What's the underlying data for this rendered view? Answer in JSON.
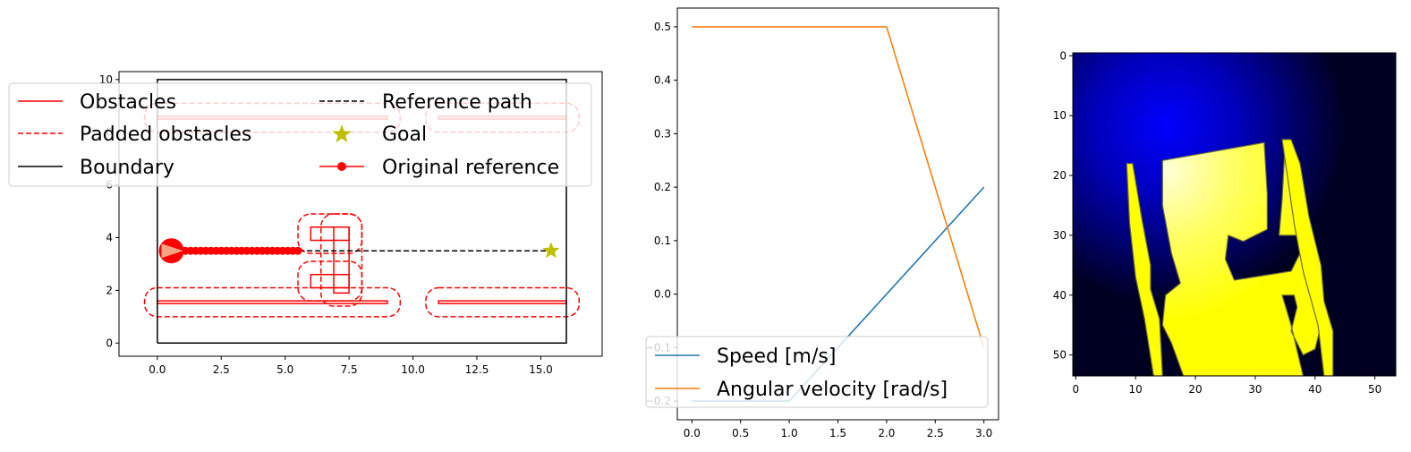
{
  "chart_data": [
    {
      "type": "line",
      "xlim": [
        -1.5,
        17.4
      ],
      "ylim": [
        -0.5,
        10.3
      ],
      "x_ticks": [
        "0.0",
        "2.5",
        "5.0",
        "7.5",
        "10.0",
        "12.5",
        "15.0"
      ],
      "y_ticks": [
        "0",
        "2",
        "4",
        "6",
        "8",
        "10"
      ],
      "grid": false,
      "legend_placement": "upper-left",
      "legend": {
        "obstacles": "Obstacles",
        "padded": "Padded obstacles",
        "boundary": "Boundary",
        "reference": "Reference path",
        "goal": "Goal",
        "original": "Original reference"
      },
      "boundary": [
        [
          0,
          0
        ],
        [
          16,
          0
        ],
        [
          16,
          10
        ],
        [
          0,
          10
        ],
        [
          0,
          0
        ]
      ],
      "obstacles": [
        [
          [
            0,
            1.5
          ],
          [
            9,
            1.5
          ],
          [
            9,
            1.6
          ],
          [
            0,
            1.6
          ]
        ],
        [
          [
            11,
            1.5
          ],
          [
            16,
            1.5
          ],
          [
            16,
            1.6
          ],
          [
            11,
            1.6
          ]
        ],
        [
          [
            0,
            8.5
          ],
          [
            9,
            8.5
          ],
          [
            9,
            8.6
          ],
          [
            0,
            8.6
          ]
        ],
        [
          [
            11,
            8.5
          ],
          [
            16,
            8.5
          ],
          [
            16,
            8.6
          ],
          [
            11,
            8.6
          ]
        ],
        [
          [
            6.0,
            2.1
          ],
          [
            7.5,
            2.1
          ],
          [
            7.5,
            2.6
          ],
          [
            6.0,
            2.6
          ]
        ],
        [
          [
            6.0,
            3.9
          ],
          [
            7.5,
            3.9
          ],
          [
            7.5,
            4.4
          ],
          [
            6.0,
            4.4
          ]
        ],
        [
          [
            6.9,
            1.9
          ],
          [
            7.5,
            1.9
          ],
          [
            7.5,
            4.4
          ],
          [
            6.9,
            4.4
          ]
        ]
      ],
      "padding": 0.5,
      "reference_path": [
        [
          0.5,
          3.5
        ],
        [
          15.4,
          3.5
        ]
      ],
      "goal": [
        15.4,
        3.5
      ],
      "original_reference": {
        "x_start": 0.5,
        "x_end": 5.5,
        "y": 3.5,
        "count": 26
      },
      "robot": {
        "x": 0.55,
        "y": 3.5
      },
      "colors": {
        "obstacle": "#ff0000",
        "reference": "#000000",
        "goal": "#bfbf00",
        "robot": "#f4a582"
      }
    },
    {
      "type": "line",
      "xlim": [
        -0.15,
        3.15
      ],
      "ylim": [
        -0.235,
        0.535
      ],
      "x_ticks": [
        "0.0",
        "0.5",
        "1.0",
        "1.5",
        "2.0",
        "2.5",
        "3.0"
      ],
      "y_ticks": [
        "−0.2",
        "−0.1",
        "0.0",
        "0.1",
        "0.2",
        "0.3",
        "0.4",
        "0.5"
      ],
      "grid": false,
      "legend_placement": "lower-left",
      "series": [
        {
          "name": "Speed [m/s]",
          "color": "#1f77b4",
          "x": [
            0,
            1,
            3
          ],
          "values": [
            -0.2,
            -0.2,
            0.2
          ]
        },
        {
          "name": "Angular velocity [rad/s]",
          "color": "#ff7f0e",
          "x": [
            0,
            1,
            2,
            3
          ],
          "values": [
            0.5,
            0.5,
            0.5,
            -0.1
          ]
        }
      ]
    },
    {
      "type": "heatmap",
      "xlim": [
        -0.5,
        53.5
      ],
      "ylim": [
        53.5,
        -0.5
      ],
      "x_ticks": [
        "0",
        "10",
        "20",
        "30",
        "40",
        "50"
      ],
      "y_ticks": [
        "0",
        "10",
        "20",
        "30",
        "40",
        "50"
      ],
      "size": 54,
      "colormap": "blue-to-yellow",
      "free_polygons": [
        [
          [
            14.5,
            17.5
          ],
          [
            31.5,
            14.5
          ],
          [
            32,
            23
          ],
          [
            32,
            29
          ],
          [
            28,
            31
          ],
          [
            25.5,
            30
          ],
          [
            25,
            34
          ],
          [
            26.5,
            37.5
          ],
          [
            36,
            36
          ],
          [
            38,
            32
          ],
          [
            37.5,
            30
          ],
          [
            34,
            30
          ],
          [
            34.5,
            24
          ],
          [
            35,
            14.5
          ],
          [
            36.5,
            18
          ],
          [
            38,
            30
          ],
          [
            39.5,
            37
          ],
          [
            41,
            45
          ],
          [
            40,
            49
          ],
          [
            38,
            50
          ],
          [
            36,
            46
          ],
          [
            37,
            42
          ],
          [
            36.5,
            40
          ],
          [
            34.5,
            40
          ],
          [
            36,
            45
          ],
          [
            38,
            53.5
          ],
          [
            18,
            53.5
          ],
          [
            16,
            48
          ],
          [
            14.5,
            45
          ],
          [
            15,
            40
          ],
          [
            17.5,
            38
          ],
          [
            16,
            33
          ],
          [
            14.5,
            25
          ]
        ],
        [
          [
            8.5,
            18
          ],
          [
            9.5,
            18
          ],
          [
            11,
            27
          ],
          [
            12.5,
            35
          ],
          [
            12.5,
            39
          ],
          [
            14,
            44
          ],
          [
            14.5,
            53.5
          ],
          [
            13,
            53.5
          ],
          [
            11.5,
            44
          ],
          [
            10,
            37
          ],
          [
            9,
            28
          ]
        ],
        [
          [
            34.5,
            14
          ],
          [
            36,
            14
          ],
          [
            37.5,
            18
          ],
          [
            39,
            27
          ],
          [
            41,
            35
          ],
          [
            41.5,
            41
          ],
          [
            43,
            46
          ],
          [
            43,
            53.5
          ],
          [
            41.5,
            53.5
          ],
          [
            40.5,
            45
          ],
          [
            38,
            36
          ],
          [
            36.5,
            28
          ]
        ]
      ],
      "colors": {
        "background_dark": "#000022",
        "glow": "#0000ff",
        "free_light": "#ffffc8",
        "free_mid": "#ffff66",
        "free_full": "#ffff00"
      }
    }
  ]
}
